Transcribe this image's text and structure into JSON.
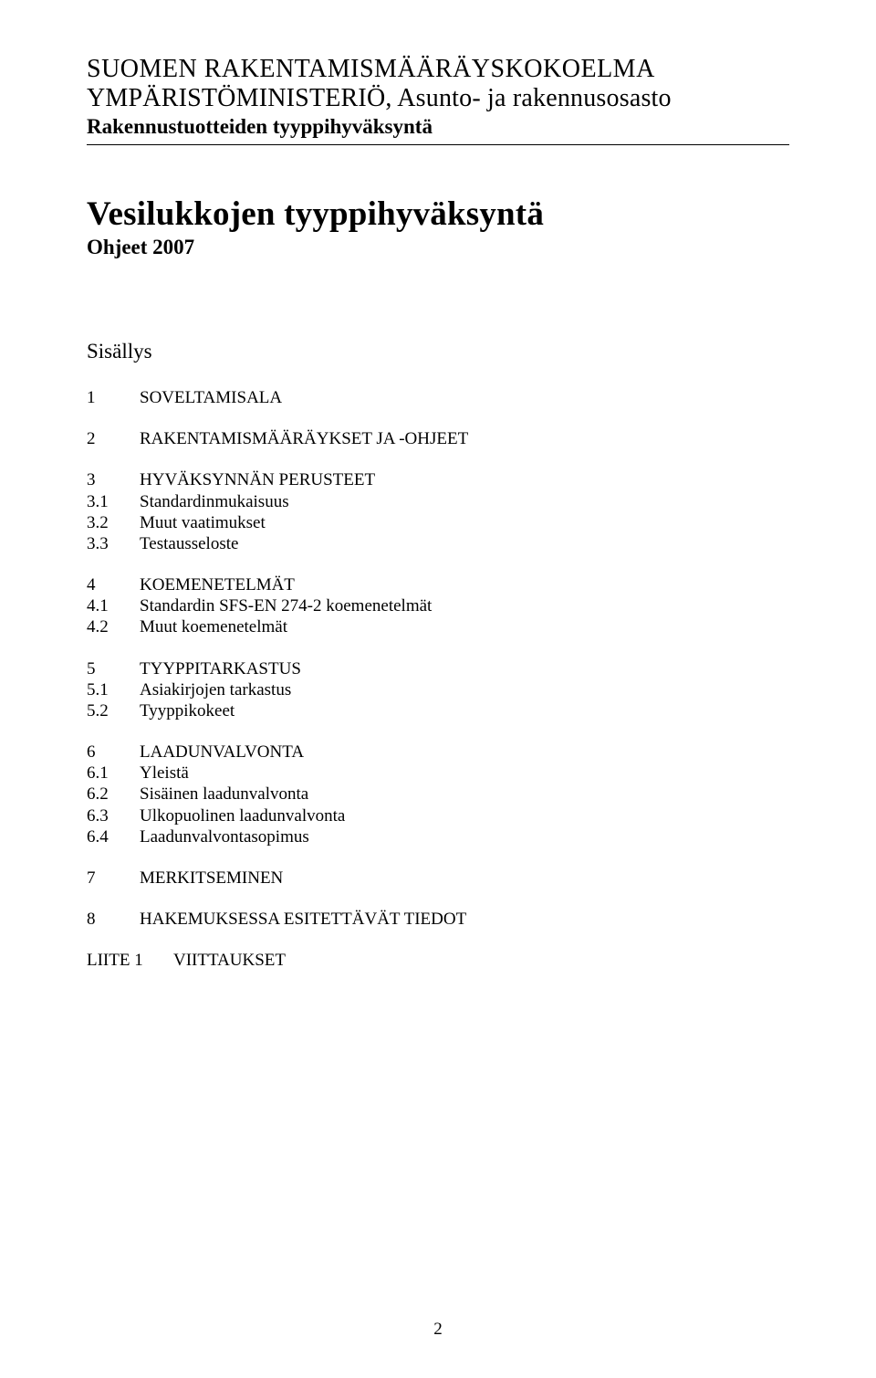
{
  "header": {
    "line1": "SUOMEN RAKENTAMISMÄÄRÄYSKOKOELMA",
    "line2": "YMPÄRISTÖMINISTERIÖ, Asunto- ja rakennusosasto",
    "line3": "Rakennustuotteiden tyyppihyväksyntä"
  },
  "title": "Vesilukkojen tyyppihyväksyntä",
  "subtitle": "Ohjeet 2007",
  "toc_heading": "Sisällys",
  "toc": [
    {
      "items": [
        {
          "num": "1",
          "label": "SOVELTAMISALA"
        }
      ]
    },
    {
      "items": [
        {
          "num": "2",
          "label": "RAKENTAMISMÄÄRÄYKSET JA -OHJEET"
        }
      ]
    },
    {
      "items": [
        {
          "num": "3",
          "label": "HYVÄKSYNNÄN PERUSTEET"
        },
        {
          "num": "3.1",
          "label": "Standardinmukaisuus"
        },
        {
          "num": "3.2",
          "label": "Muut vaatimukset"
        },
        {
          "num": "3.3",
          "label": "Testausseloste"
        }
      ]
    },
    {
      "items": [
        {
          "num": "4",
          "label": "KOEMENETELMÄT"
        },
        {
          "num": "4.1",
          "label": "Standardin SFS-EN 274-2 koemenetelmät"
        },
        {
          "num": "4.2",
          "label": "Muut koemenetelmät"
        }
      ]
    },
    {
      "items": [
        {
          "num": "5",
          "label": "TYYPPITARKASTUS"
        },
        {
          "num": "5.1",
          "label": "Asiakirjojen tarkastus"
        },
        {
          "num": "5.2",
          "label": "Tyyppikokeet"
        }
      ]
    },
    {
      "items": [
        {
          "num": "6",
          "label": "LAADUNVALVONTA"
        },
        {
          "num": "6.1",
          "label": "Yleistä"
        },
        {
          "num": "6.2",
          "label": "Sisäinen laadunvalvonta"
        },
        {
          "num": "6.3",
          "label": "Ulkopuolinen laadunvalvonta"
        },
        {
          "num": "6.4",
          "label": "Laadunvalvontasopimus"
        }
      ]
    },
    {
      "items": [
        {
          "num": "7",
          "label": "MERKITSEMINEN"
        }
      ]
    },
    {
      "items": [
        {
          "num": "8",
          "label": "HAKEMUKSESSA ESITETTÄVÄT TIEDOT"
        }
      ]
    },
    {
      "items": [
        {
          "num": "LIITE 1",
          "label": "VIITTAUKSET"
        }
      ],
      "wideNum": true
    }
  ],
  "page_number": "2",
  "colors": {
    "text": "#000000",
    "background": "#ffffff",
    "rule": "#000000"
  }
}
